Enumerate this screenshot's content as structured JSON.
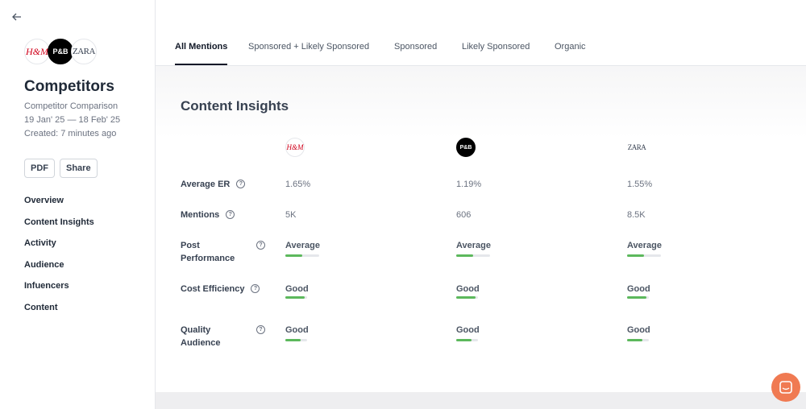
{
  "sidebar": {
    "logos": [
      "H&M",
      "P&B",
      "ZARA"
    ],
    "title": "Competitors",
    "subtitle": "Competitor Comparison",
    "date_range": "19 Jan' 25 — 18 Feb' 25",
    "created": "Created: 7 minutes ago",
    "buttons": [
      "PDF",
      "Share"
    ],
    "nav": [
      "Overview",
      "Content Insights",
      "Activity",
      "Audience",
      "Infuencers",
      "Content"
    ]
  },
  "tabs": {
    "items": [
      "All Mentions",
      "Sponsored + Likely Sponsored",
      "Sponsored",
      "Likely Sponsored",
      "Organic"
    ],
    "active": 0
  },
  "content": {
    "title": "Content Insights",
    "brands": [
      "H&M",
      "P&B",
      "ZARA"
    ],
    "rows": [
      {
        "label": "Average ER",
        "values": [
          "1.65%",
          "1.19%",
          "1.55%"
        ]
      },
      {
        "label": "Mentions",
        "values": [
          "5K",
          "606",
          "8.5K"
        ]
      },
      {
        "label": "Post Performance",
        "values": [
          "Average",
          "Average",
          "Average"
        ],
        "levels": [
          0.5,
          0.5,
          0.5
        ]
      },
      {
        "label": "Cost Efficiency",
        "values": [
          "Good",
          "Good",
          "Good"
        ],
        "levels": [
          0.9,
          0.9,
          0.9
        ]
      },
      {
        "label": "Quality Audience",
        "values": [
          "Good",
          "Good",
          "Good"
        ],
        "levels": [
          0.7,
          0.7,
          0.7
        ]
      }
    ]
  }
}
